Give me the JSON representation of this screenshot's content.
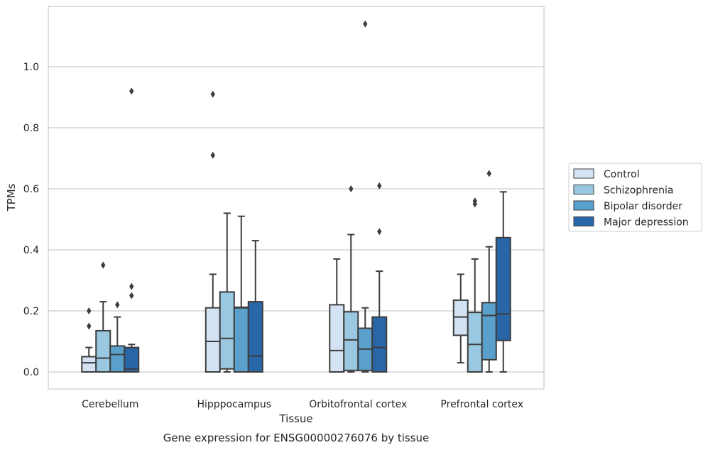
{
  "caption": "Gene expression for ENSG00000276076 by tissue",
  "chart_data": {
    "type": "boxplot",
    "xlabel": "Tissue",
    "ylabel": "TPMs",
    "ylim": [
      -0.055,
      1.21
    ],
    "yticks": [
      0.0,
      0.2,
      0.4,
      0.6,
      0.8,
      1.0
    ],
    "ytick_labels": [
      "0.0",
      "0.2",
      "0.4",
      "0.6",
      "0.8",
      "1.0"
    ],
    "grid": "horizontal",
    "legend_position": "right",
    "categories": [
      "Cerebellum",
      "Hipppocampus",
      "Orbitofrontal cortex",
      "Prefrontal cortex"
    ],
    "series": [
      {
        "name": "Control",
        "color": "#d3e3f3",
        "boxes": [
          {
            "whislo": 0.0,
            "q1": 0.0,
            "med": 0.03,
            "q3": 0.05,
            "whishi": 0.08,
            "fliers": [
              0.15,
              0.2
            ]
          },
          {
            "whislo": 0.0,
            "q1": 0.0,
            "med": 0.1,
            "q3": 0.21,
            "whishi": 0.32,
            "fliers": [
              0.71,
              0.91
            ]
          },
          {
            "whislo": 0.0,
            "q1": 0.0,
            "med": 0.07,
            "q3": 0.22,
            "whishi": 0.37,
            "fliers": []
          },
          {
            "whislo": 0.03,
            "q1": 0.12,
            "med": 0.18,
            "q3": 0.235,
            "whishi": 0.32,
            "fliers": []
          }
        ]
      },
      {
        "name": "Schizophrenia",
        "color": "#9ac8e0",
        "boxes": [
          {
            "whislo": 0.0,
            "q1": 0.0,
            "med": 0.045,
            "q3": 0.135,
            "whishi": 0.23,
            "fliers": [
              0.35
            ]
          },
          {
            "whislo": 0.0,
            "q1": 0.01,
            "med": 0.11,
            "q3": 0.262,
            "whishi": 0.52,
            "fliers": []
          },
          {
            "whislo": 0.0,
            "q1": 0.005,
            "med": 0.105,
            "q3": 0.197,
            "whishi": 0.45,
            "fliers": [
              0.6
            ]
          },
          {
            "whislo": 0.0,
            "q1": 0.0,
            "med": 0.09,
            "q3": 0.195,
            "whishi": 0.37,
            "fliers": [
              0.55,
              0.56
            ]
          }
        ]
      },
      {
        "name": "Bipolar disorder",
        "color": "#5aa0cd",
        "boxes": [
          {
            "whislo": 0.0,
            "q1": 0.0,
            "med": 0.057,
            "q3": 0.085,
            "whishi": 0.18,
            "fliers": [
              0.22
            ]
          },
          {
            "whislo": 0.0,
            "q1": 0.0,
            "med": 0.21,
            "q3": 0.212,
            "whishi": 0.51,
            "fliers": []
          },
          {
            "whislo": 0.0,
            "q1": 0.005,
            "med": 0.075,
            "q3": 0.143,
            "whishi": 0.21,
            "fliers": [
              1.14
            ]
          },
          {
            "whislo": 0.0,
            "q1": 0.04,
            "med": 0.185,
            "q3": 0.227,
            "whishi": 0.41,
            "fliers": [
              0.65
            ]
          }
        ]
      },
      {
        "name": "Major depression",
        "color": "#2866a8",
        "boxes": [
          {
            "whislo": 0.0,
            "q1": 0.0,
            "med": 0.01,
            "q3": 0.08,
            "whishi": 0.09,
            "fliers": [
              0.25,
              0.28,
              0.92
            ]
          },
          {
            "whislo": 0.0,
            "q1": 0.0,
            "med": 0.052,
            "q3": 0.23,
            "whishi": 0.43,
            "fliers": []
          },
          {
            "whislo": 0.0,
            "q1": 0.0,
            "med": 0.08,
            "q3": 0.18,
            "whishi": 0.33,
            "fliers": [
              0.46,
              0.61
            ]
          },
          {
            "whislo": 0.0,
            "q1": 0.103,
            "med": 0.19,
            "q3": 0.44,
            "whishi": 0.59,
            "fliers": []
          }
        ]
      }
    ]
  }
}
